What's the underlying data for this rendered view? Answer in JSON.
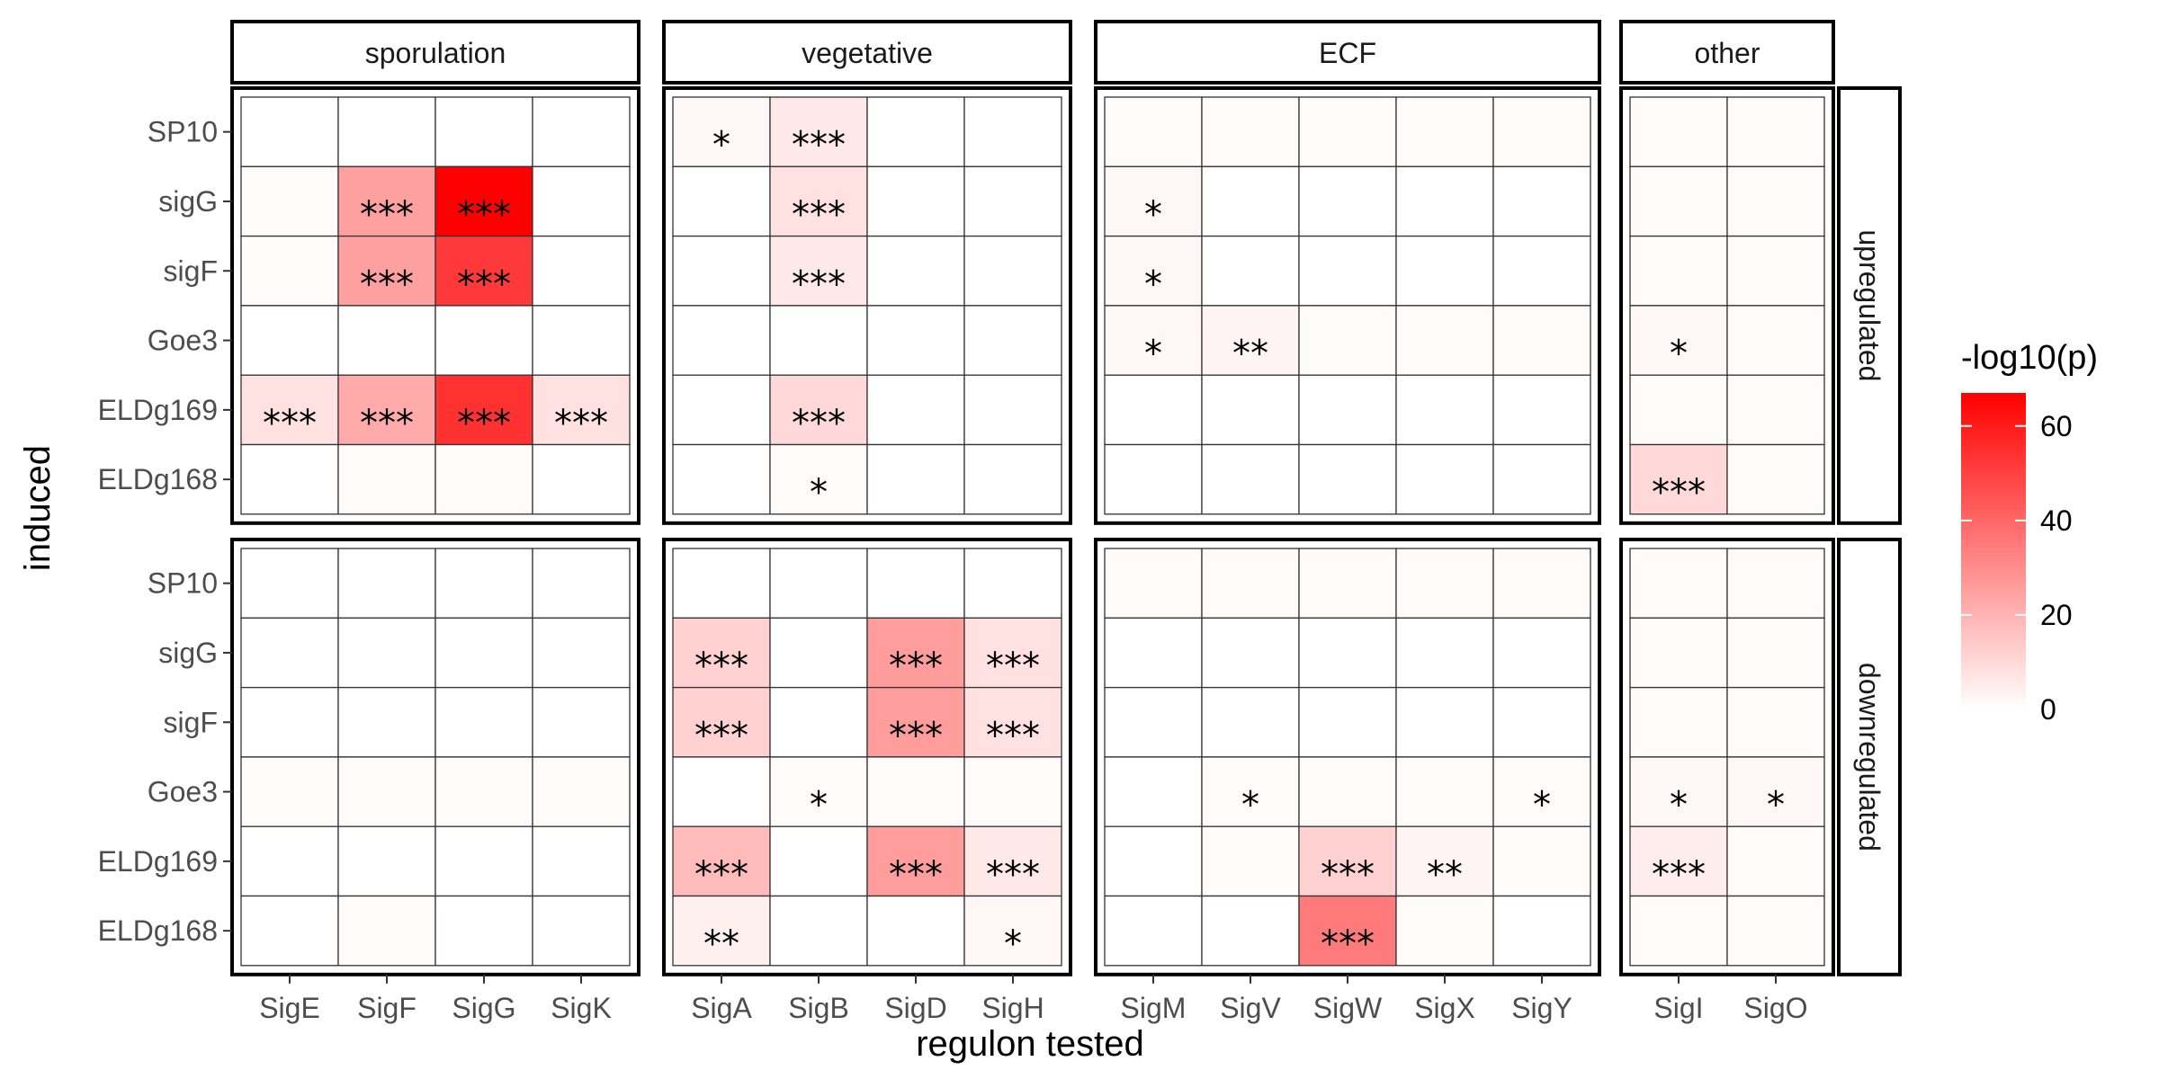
{
  "chart_data": {
    "type": "heatmap",
    "xlabel": "regulon tested",
    "ylabel": "induced",
    "legend": {
      "title": "-log10(p)",
      "ticks": [
        0,
        20,
        40,
        60
      ],
      "range": [
        0,
        67
      ],
      "low_color": "#ffffff",
      "high_color": "#ff0000",
      "placement": "right"
    },
    "y_categories": [
      "SP10",
      "sigG",
      "sigF",
      "Goe3",
      "ELDg169",
      "ELDg168"
    ],
    "column_groups": [
      {
        "name": "sporulation",
        "regulons": [
          "SigE",
          "SigF",
          "SigG",
          "SigK"
        ]
      },
      {
        "name": "vegetative",
        "regulons": [
          "SigA",
          "SigB",
          "SigD",
          "SigH"
        ]
      },
      {
        "name": "ECF",
        "regulons": [
          "SigM",
          "SigV",
          "SigW",
          "SigX",
          "SigY"
        ]
      },
      {
        "name": "other",
        "regulons": [
          "SigI",
          "SigO"
        ]
      }
    ],
    "row_groups": [
      {
        "name": "upregulated",
        "values": {
          "sporulation": [
            [
              0,
              0,
              0,
              0
            ],
            [
              1,
              25,
              67,
              0
            ],
            [
              1,
              25,
              52,
              0
            ],
            [
              0,
              0,
              0,
              0
            ],
            [
              8,
              22,
              54,
              8
            ],
            [
              0,
              1,
              1,
              0
            ]
          ],
          "vegetative": [
            [
              2,
              6,
              0,
              0
            ],
            [
              0,
              8,
              0,
              0
            ],
            [
              0,
              6,
              0,
              0
            ],
            [
              0,
              0,
              0,
              0
            ],
            [
              0,
              10,
              0,
              0
            ],
            [
              0,
              1,
              0,
              0
            ]
          ],
          "ECF": [
            [
              1,
              1,
              1,
              1,
              1
            ],
            [
              2,
              0,
              0,
              0,
              0
            ],
            [
              2,
              0,
              0,
              0,
              0
            ],
            [
              2,
              3,
              1,
              1,
              1
            ],
            [
              0,
              0,
              0,
              0,
              0
            ],
            [
              0,
              0,
              0,
              0,
              0
            ]
          ],
          "other": [
            [
              1,
              1
            ],
            [
              1,
              1
            ],
            [
              1,
              1
            ],
            [
              2,
              1
            ],
            [
              1,
              1
            ],
            [
              10,
              1
            ]
          ]
        },
        "stars": {
          "sporulation": [
            [
              "",
              "",
              "",
              ""
            ],
            [
              "",
              "***",
              "***",
              ""
            ],
            [
              "",
              "***",
              "***",
              ""
            ],
            [
              "",
              "",
              "",
              ""
            ],
            [
              "***",
              "***",
              "***",
              "***"
            ],
            [
              "",
              "",
              "",
              ""
            ]
          ],
          "vegetative": [
            [
              "*",
              "***",
              "",
              ""
            ],
            [
              "",
              "***",
              "",
              ""
            ],
            [
              "",
              "***",
              "",
              ""
            ],
            [
              "",
              "",
              "",
              ""
            ],
            [
              "",
              "***",
              "",
              ""
            ],
            [
              "",
              "*",
              "",
              ""
            ]
          ],
          "ECF": [
            [
              "",
              "",
              "",
              "",
              ""
            ],
            [
              "*",
              "",
              "",
              "",
              ""
            ],
            [
              "*",
              "",
              "",
              "",
              ""
            ],
            [
              "*",
              "**",
              "",
              "",
              ""
            ],
            [
              "",
              "",
              "",
              "",
              ""
            ],
            [
              "",
              "",
              "",
              "",
              ""
            ]
          ],
          "other": [
            [
              "",
              ""
            ],
            [
              "",
              ""
            ],
            [
              "",
              ""
            ],
            [
              "*",
              ""
            ],
            [
              "",
              ""
            ],
            [
              "***",
              ""
            ]
          ]
        }
      },
      {
        "name": "downregulated",
        "values": {
          "sporulation": [
            [
              0,
              0,
              0,
              0
            ],
            [
              0,
              0,
              0,
              0
            ],
            [
              0,
              0,
              0,
              0
            ],
            [
              1,
              1,
              1,
              1
            ],
            [
              0,
              0,
              0,
              0
            ],
            [
              0,
              1,
              0,
              0
            ]
          ],
          "vegetative": [
            [
              0,
              0,
              0,
              0
            ],
            [
              12,
              0,
              26,
              8
            ],
            [
              12,
              0,
              26,
              8
            ],
            [
              0,
              1,
              1,
              1
            ],
            [
              18,
              0,
              26,
              6
            ],
            [
              4,
              0,
              0,
              2
            ]
          ],
          "ECF": [
            [
              1,
              1,
              1,
              1,
              1
            ],
            [
              0,
              0,
              0,
              0,
              0
            ],
            [
              0,
              0,
              0,
              0,
              0
            ],
            [
              0,
              1,
              1,
              1,
              1
            ],
            [
              0,
              1,
              12,
              3,
              1
            ],
            [
              0,
              0,
              35,
              1,
              0
            ]
          ],
          "other": [
            [
              1,
              1
            ],
            [
              1,
              1
            ],
            [
              1,
              1
            ],
            [
              2,
              2
            ],
            [
              5,
              1
            ],
            [
              1,
              1
            ]
          ]
        },
        "stars": {
          "sporulation": [
            [
              "",
              "",
              "",
              ""
            ],
            [
              "",
              "",
              "",
              ""
            ],
            [
              "",
              "",
              "",
              ""
            ],
            [
              "",
              "",
              "",
              ""
            ],
            [
              "",
              "",
              "",
              ""
            ],
            [
              "",
              "",
              "",
              ""
            ]
          ],
          "vegetative": [
            [
              "",
              "",
              "",
              ""
            ],
            [
              "***",
              "",
              "***",
              "***"
            ],
            [
              "***",
              "",
              "***",
              "***"
            ],
            [
              "",
              "*",
              "",
              ""
            ],
            [
              "***",
              "",
              "***",
              "***"
            ],
            [
              "**",
              "",
              "",
              "*"
            ]
          ],
          "ECF": [
            [
              "",
              "",
              "",
              "",
              ""
            ],
            [
              "",
              "",
              "",
              "",
              ""
            ],
            [
              "",
              "",
              "",
              "",
              ""
            ],
            [
              "",
              "*",
              "",
              "",
              "*"
            ],
            [
              "",
              "",
              "***",
              "**",
              ""
            ],
            [
              "",
              "",
              "***",
              "",
              ""
            ]
          ],
          "other": [
            [
              "",
              ""
            ],
            [
              "",
              ""
            ],
            [
              "",
              ""
            ],
            [
              "*",
              "*"
            ],
            [
              "***",
              ""
            ],
            [
              "",
              ""
            ]
          ]
        }
      }
    ]
  }
}
